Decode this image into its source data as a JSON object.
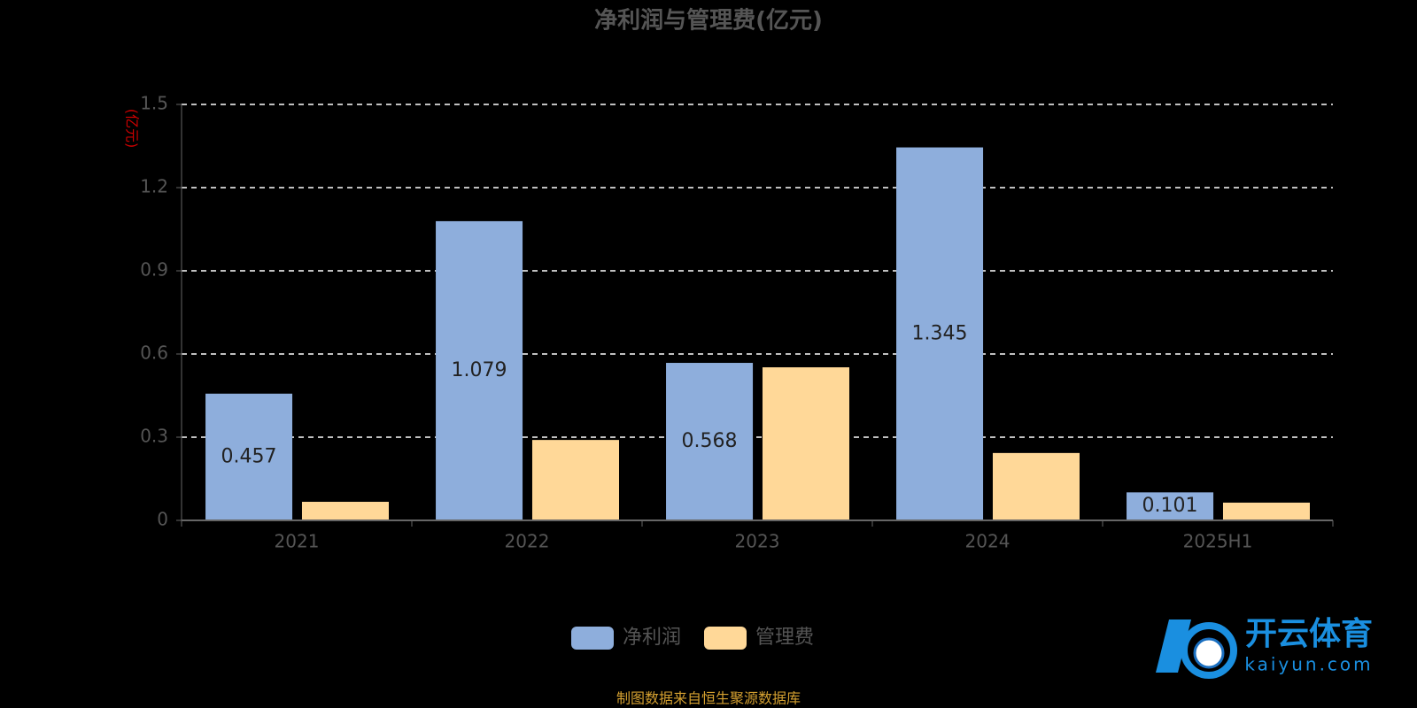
{
  "chart_data": {
    "type": "bar",
    "title": "净利润与管理费(亿元)",
    "y_axis_label": "(亿元)",
    "categories": [
      "2021",
      "2022",
      "2023",
      "2024",
      "2025H1"
    ],
    "series": [
      {
        "name": "净利润",
        "color": "#8eaedc",
        "values": [
          0.457,
          1.079,
          0.568,
          1.345,
          0.101
        ],
        "show_labels": true
      },
      {
        "name": "管理费",
        "color": "#ffd898",
        "values": [
          0.067,
          0.29,
          0.552,
          0.243,
          0.064
        ],
        "show_labels": false
      }
    ],
    "ylim": [
      0,
      1.5
    ],
    "yticks": [
      0,
      0.3,
      0.6,
      0.9,
      1.2,
      1.5
    ],
    "grid": true,
    "source": "制图数据来自恒生聚源数据库"
  },
  "watermark": {
    "brand": "开云体育",
    "site": "kaiyun.com"
  }
}
